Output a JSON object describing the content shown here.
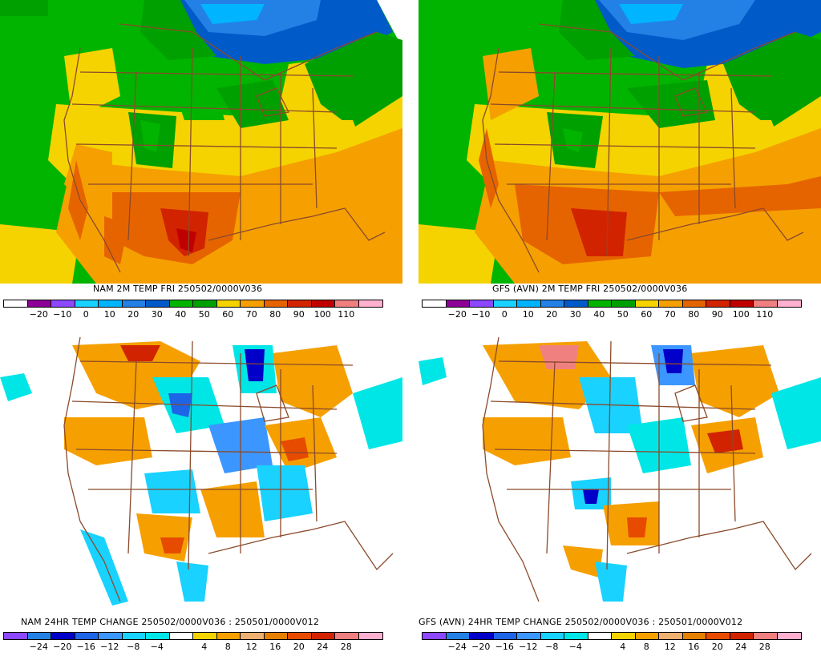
{
  "panels": [
    {
      "kind": "temp",
      "title": "NAM 2M TEMP  FRI 250502/0000V036",
      "colorbar": {
        "colors": [
          "#ffffff",
          "#8c0096",
          "#8b48ff",
          "#19d2ff",
          "#00b4ff",
          "#2381e6",
          "#005ac8",
          "#00b400",
          "#00a000",
          "#f5d300",
          "#f5a000",
          "#e66400",
          "#d22300",
          "#c00000",
          "#f08080",
          "#ffb0d0"
        ],
        "labels": [
          "−20",
          "−10",
          "0",
          "10",
          "20",
          "30",
          "40",
          "50",
          "60",
          "70",
          "80",
          "90",
          "100",
          "110"
        ]
      }
    },
    {
      "kind": "temp",
      "title": "GFS (AVN) 2M TEMP  FRI 250502/0000V036",
      "colorbar": {
        "colors": [
          "#ffffff",
          "#8c0096",
          "#8b48ff",
          "#19d2ff",
          "#00b4ff",
          "#2381e6",
          "#005ac8",
          "#00b400",
          "#00a000",
          "#f5d300",
          "#f5a000",
          "#e66400",
          "#d22300",
          "#c00000",
          "#f08080",
          "#ffb0d0"
        ],
        "labels": [
          "−20",
          "−10",
          "0",
          "10",
          "20",
          "30",
          "40",
          "50",
          "60",
          "70",
          "80",
          "90",
          "100",
          "110"
        ]
      }
    },
    {
      "kind": "change",
      "title": "NAM 24HR TEMP CHANGE 250502/0000V036 : 250501/0000V012",
      "colorbar": {
        "colors": [
          "#8b48ff",
          "#2381e6",
          "#0000c8",
          "#1e64e6",
          "#3c96ff",
          "#19d2ff",
          "#00e6e6",
          "#ffffff",
          "#f5d300",
          "#f5a000",
          "#f0b070",
          "#e68000",
          "#e64b00",
          "#d22300",
          "#f08080",
          "#ffb0d0"
        ],
        "labels": [
          "−24",
          "−20",
          "−16",
          "−12",
          "−8",
          "−4",
          "4",
          "8",
          "12",
          "16",
          "20",
          "24",
          "28"
        ]
      }
    },
    {
      "kind": "change",
      "title": "GFS (AVN) 24HR TEMP CHANGE 250502/0000V036 : 250501/0000V012",
      "colorbar": {
        "colors": [
          "#8b48ff",
          "#2381e6",
          "#0000c8",
          "#1e64e6",
          "#3c96ff",
          "#19d2ff",
          "#00e6e6",
          "#ffffff",
          "#f5d300",
          "#f5a000",
          "#f0b070",
          "#e68000",
          "#e64b00",
          "#d22300",
          "#f08080",
          "#ffb0d0"
        ],
        "labels": [
          "−24",
          "−20",
          "−16",
          "−12",
          "−8",
          "−4",
          "4",
          "8",
          "12",
          "16",
          "20",
          "24",
          "28"
        ]
      }
    }
  ]
}
